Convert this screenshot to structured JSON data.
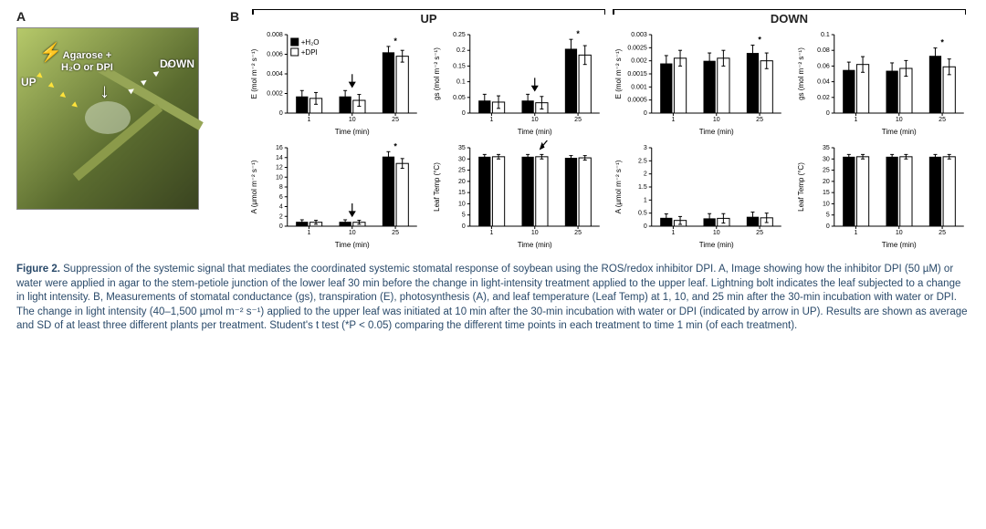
{
  "panelA": {
    "label": "A",
    "up": "UP",
    "down": "DOWN",
    "treatLine1": "Agarose +",
    "treatLine2": "H₂O or DPI",
    "bolt": "⚡"
  },
  "panelB": {
    "label": "B",
    "sectionUP": "UP",
    "sectionDOWN": "DOWN",
    "legend_h2o": "+H₂O",
    "legend_dpi": "+DPI",
    "xlabel": "Time (min)"
  },
  "charts": {
    "up_e": {
      "ylabel": "E (mol m⁻² s⁻¹)",
      "ymax": 0.008,
      "yticks": [
        0,
        0.002,
        0.004,
        0.006,
        0.008
      ],
      "x": [
        "1",
        "10",
        "25"
      ],
      "h2o": [
        0.0017,
        0.0017,
        0.0062
      ],
      "dpi": [
        0.0015,
        0.0013,
        0.0058
      ],
      "err": [
        0.0006,
        0.0006,
        0.0006
      ],
      "stars": [
        0,
        0,
        1
      ],
      "arrow_at": 1,
      "legend": true
    },
    "up_gs": {
      "ylabel": "gs (mol m⁻² s⁻¹)",
      "ymax": 0.25,
      "yticks": [
        0,
        0.05,
        0.1,
        0.15,
        0.2,
        0.25
      ],
      "x": [
        "1",
        "10",
        "25"
      ],
      "h2o": [
        0.04,
        0.04,
        0.205
      ],
      "dpi": [
        0.035,
        0.033,
        0.185
      ],
      "err": [
        0.02,
        0.02,
        0.03
      ],
      "stars": [
        0,
        0,
        1
      ],
      "arrow_at": 1
    },
    "down_e": {
      "ylabel": "E (mol m⁻² s⁻¹)",
      "ymax": 0.003,
      "yticks": [
        0,
        0.0005,
        0.001,
        0.0015,
        0.002,
        0.0025,
        0.003
      ],
      "x": [
        "1",
        "10",
        "25"
      ],
      "h2o": [
        0.0019,
        0.002,
        0.0023
      ],
      "dpi": [
        0.0021,
        0.0021,
        0.002
      ],
      "err": [
        0.0003,
        0.0003,
        0.0003
      ],
      "stars": [
        0,
        0,
        1
      ]
    },
    "down_gs": {
      "ylabel": "gs (mol m⁻² s⁻¹)",
      "ymax": 0.1,
      "yticks": [
        0,
        0.02,
        0.04,
        0.06,
        0.08,
        0.1
      ],
      "x": [
        "1",
        "10",
        "25"
      ],
      "h2o": [
        0.055,
        0.054,
        0.073
      ],
      "dpi": [
        0.062,
        0.057,
        0.059
      ],
      "err": [
        0.01,
        0.01,
        0.01
      ],
      "stars": [
        0,
        0,
        1
      ]
    },
    "up_a": {
      "ylabel": "A (μmol m⁻² s⁻¹)",
      "ymax": 16,
      "yticks": [
        0,
        2,
        4,
        6,
        8,
        10,
        12,
        14,
        16
      ],
      "x": [
        "1",
        "10",
        "25"
      ],
      "h2o": [
        0.9,
        0.9,
        14.2
      ],
      "dpi": [
        0.8,
        0.8,
        12.8
      ],
      "err": [
        0.4,
        0.4,
        1.0
      ],
      "stars": [
        0,
        0,
        1
      ],
      "arrow_at": 1
    },
    "up_lt": {
      "ylabel": "Leaf Temp (°C)",
      "ymax": 35,
      "yticks": [
        0,
        5,
        10,
        15,
        20,
        25,
        30,
        35
      ],
      "x": [
        "1",
        "10",
        "25"
      ],
      "h2o": [
        31,
        31,
        30.5
      ],
      "dpi": [
        31,
        31,
        30.5
      ],
      "err": [
        1,
        1,
        1
      ],
      "stars": [
        0,
        0,
        0
      ],
      "arrow_at": 1,
      "arrow_down_between": true
    },
    "down_a": {
      "ylabel": "A (μmol m⁻² s⁻¹)",
      "ymax": 3,
      "yticks": [
        0,
        0.5,
        1,
        1.5,
        2,
        2.5,
        3
      ],
      "x": [
        "1",
        "10",
        "25"
      ],
      "h2o": [
        0.32,
        0.3,
        0.36
      ],
      "dpi": [
        0.22,
        0.3,
        0.32
      ],
      "err": [
        0.15,
        0.18,
        0.18
      ],
      "stars": [
        0,
        0,
        0
      ]
    },
    "down_lt": {
      "ylabel": "Leaf Temp (°C)",
      "ymax": 35,
      "yticks": [
        0,
        5,
        10,
        15,
        20,
        25,
        30,
        35
      ],
      "x": [
        "1",
        "10",
        "25"
      ],
      "h2o": [
        31,
        31,
        31
      ],
      "dpi": [
        31,
        31,
        31
      ],
      "err": [
        1,
        1,
        1
      ],
      "stars": [
        0,
        0,
        0
      ]
    }
  },
  "caption": {
    "bold": "Figure 2.",
    "text": " Suppression of the systemic signal that mediates the coordinated systemic stomatal response of soybean using the ROS/redox inhibitor DPI. A, Image showing how the inhibitor DPI (50 µM) or water were applied in agar to the stem-petiole junction of the lower leaf 30 min before the change in light-intensity treatment applied to the upper leaf. Lightning bolt indicates the leaf subjected to a change in light intensity. B, Measurements of stomatal conductance (gs), transpiration (E), photosynthesis (A), and leaf temperature (Leaf Temp) at 1, 10, and 25 min after the 30-min incubation with water or DPI. The change in light intensity (40–1,500 µmol m⁻² s⁻¹) applied to the upper leaf was initiated at 10 min after the 30-min incubation with water or DPI (indicated by arrow in UP). Results are shown as average and SD of at least three different plants per treatment. Student's t test (*P < 0.05) comparing the different time points in each treatment to time 1 min (of each treatment)."
  }
}
